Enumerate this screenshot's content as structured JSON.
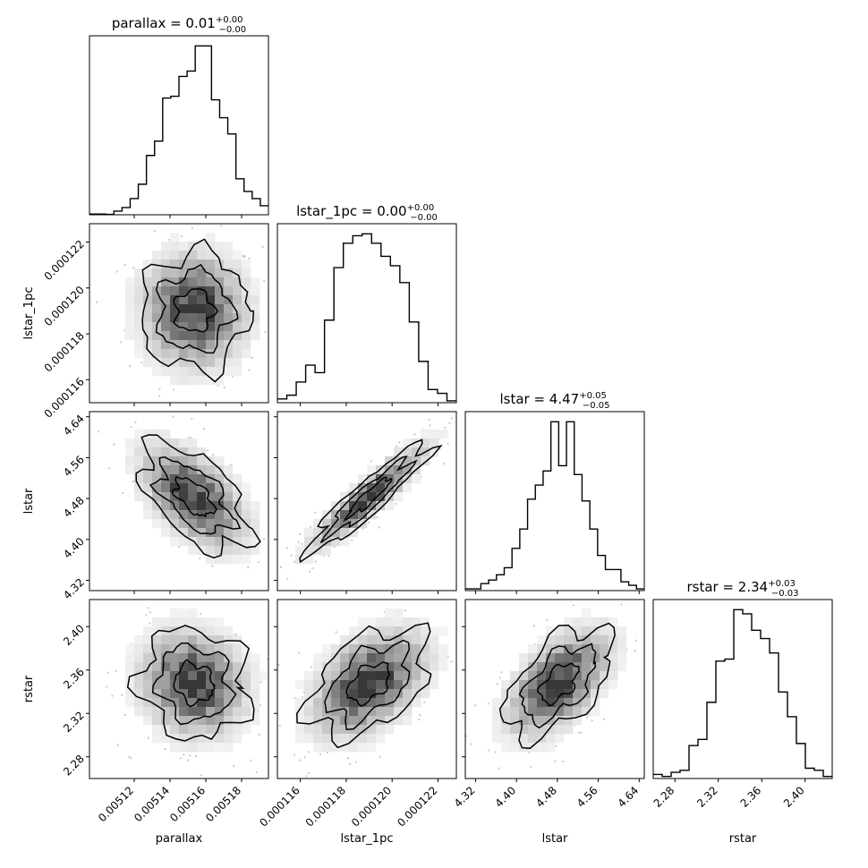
{
  "chart_data": {
    "type": "corner",
    "parameters": [
      {
        "name": "parallax",
        "axis_label": "parallax",
        "title": {
          "base": "parallax = 0.01",
          "upper": "+0.00",
          "lower": "−0.00"
        },
        "range": [
          0.005095,
          0.005195
        ],
        "ticks": [
          0.00512,
          0.00514,
          0.00516,
          0.00518
        ],
        "tick_labels": [
          "0.00512",
          "0.00514",
          "0.00516",
          "0.00518"
        ],
        "histogram": [
          0.004,
          0.004,
          0.002,
          0.02,
          0.04,
          0.09,
          0.17,
          0.33,
          0.41,
          0.65,
          0.66,
          0.77,
          0.8,
          0.94,
          0.94,
          0.64,
          0.54,
          0.45,
          0.2,
          0.13,
          0.09,
          0.05
        ]
      },
      {
        "name": "lstar_1pc",
        "axis_label": "lstar_1pc",
        "title": {
          "base": "lstar_1pc = 0.00",
          "upper": "+0.00",
          "lower": "−0.00"
        },
        "range": [
          0.000115,
          0.0001228
        ],
        "ticks": [
          0.000116,
          0.000118,
          0.00012,
          0.000122
        ],
        "tick_labels": [
          "0.000116",
          "0.000118",
          "0.000120",
          "0.000122"
        ],
        "histogram": [
          0.02,
          0.04,
          0.11,
          0.2,
          0.16,
          0.44,
          0.72,
          0.85,
          0.89,
          0.9,
          0.85,
          0.78,
          0.73,
          0.64,
          0.43,
          0.22,
          0.07,
          0.05,
          0.01
        ]
      },
      {
        "name": "lstar",
        "axis_label": "lstar",
        "title": {
          "base": "lstar = 4.47",
          "upper": "+0.05",
          "lower": "−0.05"
        },
        "range": [
          4.3,
          4.65
        ],
        "ticks": [
          4.32,
          4.4,
          4.48,
          4.56,
          4.64
        ],
        "tick_labels": [
          "4.32",
          "4.40",
          "4.48",
          "4.56",
          "4.64"
        ],
        "histogram": [
          0.01,
          0.01,
          0.04,
          0.06,
          0.09,
          0.13,
          0.24,
          0.35,
          0.52,
          0.6,
          0.68,
          0.96,
          0.71,
          0.96,
          0.66,
          0.51,
          0.35,
          0.2,
          0.12,
          0.12,
          0.05,
          0.03,
          0.01
        ]
      },
      {
        "name": "rstar",
        "axis_label": "rstar",
        "title": {
          "base": "rstar = 2.34",
          "upper": "+0.03",
          "lower": "−0.03"
        },
        "range": [
          2.26,
          2.425
        ],
        "ticks": [
          2.28,
          2.32,
          2.36,
          2.4
        ],
        "tick_labels": [
          "2.28",
          "2.32",
          "2.36",
          "2.40"
        ],
        "histogram": [
          0.02,
          0.01,
          0.03,
          0.04,
          0.16,
          0.19,
          0.37,
          0.57,
          0.58,
          0.82,
          0.8,
          0.72,
          0.68,
          0.61,
          0.42,
          0.3,
          0.17,
          0.05,
          0.04,
          0.01
        ]
      }
    ],
    "correlations": [
      {
        "x": "parallax",
        "y": "lstar_1pc",
        "rho": 0.0
      },
      {
        "x": "parallax",
        "y": "lstar",
        "rho": -0.55
      },
      {
        "x": "lstar_1pc",
        "y": "lstar",
        "rho": 0.92
      },
      {
        "x": "parallax",
        "y": "rstar",
        "rho": -0.1
      },
      {
        "x": "lstar_1pc",
        "y": "rstar",
        "rho": 0.45
      },
      {
        "x": "lstar",
        "y": "rstar",
        "rho": 0.55
      }
    ],
    "contour_levels": 3,
    "grid": false,
    "legend": "none"
  }
}
